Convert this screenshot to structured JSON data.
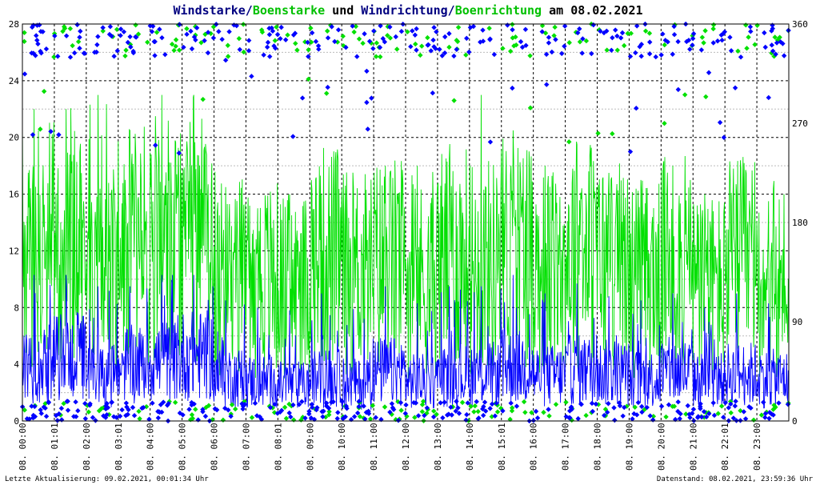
{
  "title": {
    "p1": "Windstarke",
    "sep1": "/",
    "p2": "Boenstarke",
    "p3": " und ",
    "p4": "Windrichtung",
    "sep2": "/",
    "p5": "Boenrichtung",
    "p6": " am 08.02.2021"
  },
  "footer": {
    "left": "Letzte Aktualisierung: 09.02.2021, 00:01:34 Uhr",
    "right": "Datenstand: 08.02.2021, 23:59:36 Uhr"
  },
  "colors": {
    "wind": "#0000ff",
    "gust": "#00e000",
    "title_dark": "#000080",
    "title_green": "#00c000",
    "grid_major": "#000000",
    "grid_minor": "#bbbbbb"
  },
  "chart_data": {
    "type": "line",
    "y_left": {
      "ticks": [
        "0",
        "4",
        "8",
        "12",
        "16",
        "20",
        "24",
        "28"
      ],
      "min": 0,
      "max": 28
    },
    "y_right": {
      "ticks": [
        "0",
        "90",
        "180",
        "270",
        "360"
      ],
      "min": 0,
      "max": 360
    },
    "x_ticks": [
      "08. 00:00",
      "08. 01:01",
      "08. 02:00",
      "08. 03:01",
      "08. 04:00",
      "08. 05:00",
      "08. 06:00",
      "08. 07:00",
      "08. 08:01",
      "08. 09:00",
      "08. 10:00",
      "08. 11:00",
      "08. 12:00",
      "08. 13:00",
      "08. 14:00",
      "08. 15:01",
      "08. 16:00",
      "08. 17:00",
      "08. 18:00",
      "08. 19:00",
      "08. 20:00",
      "08. 21:00",
      "08. 22:01",
      "08. 23:00"
    ],
    "x_range_hours": [
      0,
      24
    ],
    "grid": true,
    "series": [
      {
        "name": "Windstarke",
        "axis": "left",
        "color": "#0000ff",
        "hourly_mean": [
          4.0,
          4.5,
          3.2,
          4.0,
          4.2,
          4.6,
          3.1,
          2.8,
          2.5,
          3.0,
          2.6,
          3.5,
          2.8,
          3.2,
          3.3,
          3.8,
          3.2,
          3.6,
          3.4,
          3.0,
          3.5,
          2.9,
          3.3,
          3.0
        ],
        "hourly_peak": [
          10.3,
          10.3,
          9.5,
          9.5,
          10.3,
          10.3,
          8.5,
          8.0,
          7.8,
          9.0,
          7.9,
          9.5,
          8.3,
          9.5,
          9.5,
          10.3,
          9.0,
          9.7,
          8.8,
          8.5,
          9.0,
          8.0,
          9.0,
          8.3
        ]
      },
      {
        "name": "Boenstarke",
        "axis": "left",
        "color": "#00e000",
        "hourly_mean": [
          12.5,
          13.0,
          11.5,
          12.5,
          13.0,
          13.0,
          10.5,
          10.0,
          9.5,
          11.5,
          10.5,
          11.0,
          10.0,
          11.5,
          11.0,
          12.0,
          10.5,
          12.0,
          11.0,
          10.0,
          11.0,
          9.5,
          11.0,
          10.0
        ],
        "hourly_peak": [
          22.0,
          22.0,
          23.0,
          20.5,
          23.0,
          23.0,
          16.5,
          15.0,
          16.0,
          16.0,
          16.5,
          18.0,
          18.0,
          18.5,
          23.0,
          20.5,
          18.0,
          19.5,
          17.5,
          17.0,
          18.0,
          16.0,
          16.0,
          15.5
        ]
      },
      {
        "name": "Windrichtung",
        "axis": "right",
        "color": "#0000ff",
        "marker": "diamond",
        "cluster_low_deg": 15,
        "cluster_high_deg": 350
      },
      {
        "name": "Boenrichtung",
        "axis": "right",
        "color": "#00e000",
        "marker": "diamond",
        "cluster_low_deg": 15,
        "cluster_high_deg": 350
      }
    ]
  }
}
